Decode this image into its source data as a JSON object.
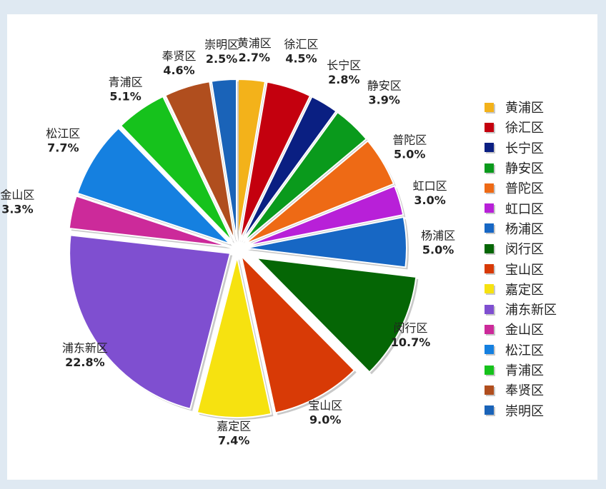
{
  "chart_data": {
    "type": "pie",
    "title": "",
    "legend_position": "right",
    "slices": [
      {
        "label": "黄浦区",
        "value": 2.7,
        "pct": "2.7%",
        "color": "#f3b21a",
        "explode": false
      },
      {
        "label": "徐汇区",
        "value": 4.5,
        "pct": "4.5%",
        "color": "#c4000e",
        "explode": false
      },
      {
        "label": "长宁区",
        "value": 2.8,
        "pct": "2.8%",
        "color": "#0a1f82",
        "explode": false
      },
      {
        "label": "静安区",
        "value": 3.9,
        "pct": "3.9%",
        "color": "#0a9a1c",
        "explode": false
      },
      {
        "label": "普陀区",
        "value": 5.0,
        "pct": "5.0%",
        "color": "#ee6a15",
        "explode": false
      },
      {
        "label": "虹口区",
        "value": 3.0,
        "pct": "3.0%",
        "color": "#b820d8",
        "explode": false
      },
      {
        "label": "杨浦区",
        "value": 5.0,
        "pct": "5.0%",
        "color": "#1767c4",
        "explode": false
      },
      {
        "label": "闵行区",
        "value": 10.7,
        "pct": "10.7%",
        "color": "#056605",
        "explode": true
      },
      {
        "label": "宝山区",
        "value": 9.0,
        "pct": "9.0%",
        "color": "#d83a06",
        "explode": false
      },
      {
        "label": "嘉定区",
        "value": 7.4,
        "pct": "7.4%",
        "color": "#f6e210",
        "explode": false
      },
      {
        "label": "浦东新区",
        "value": 22.8,
        "pct": "22.8%",
        "color": "#7f4fd0",
        "explode": false
      },
      {
        "label": "金山区",
        "value": 3.3,
        "pct": "3.3%",
        "color": "#cc2a9a",
        "explode": false
      },
      {
        "label": "松江区",
        "value": 7.7,
        "pct": "7.7%",
        "color": "#1580e0",
        "explode": false
      },
      {
        "label": "青浦区",
        "value": 5.1,
        "pct": "5.1%",
        "color": "#16c21c",
        "explode": false
      },
      {
        "label": "奉贤区",
        "value": 4.6,
        "pct": "4.6%",
        "color": "#b04e1e",
        "explode": false
      },
      {
        "label": "崇明区",
        "value": 2.5,
        "pct": "2.5%",
        "color": "#1a63b8",
        "explode": false
      }
    ]
  }
}
